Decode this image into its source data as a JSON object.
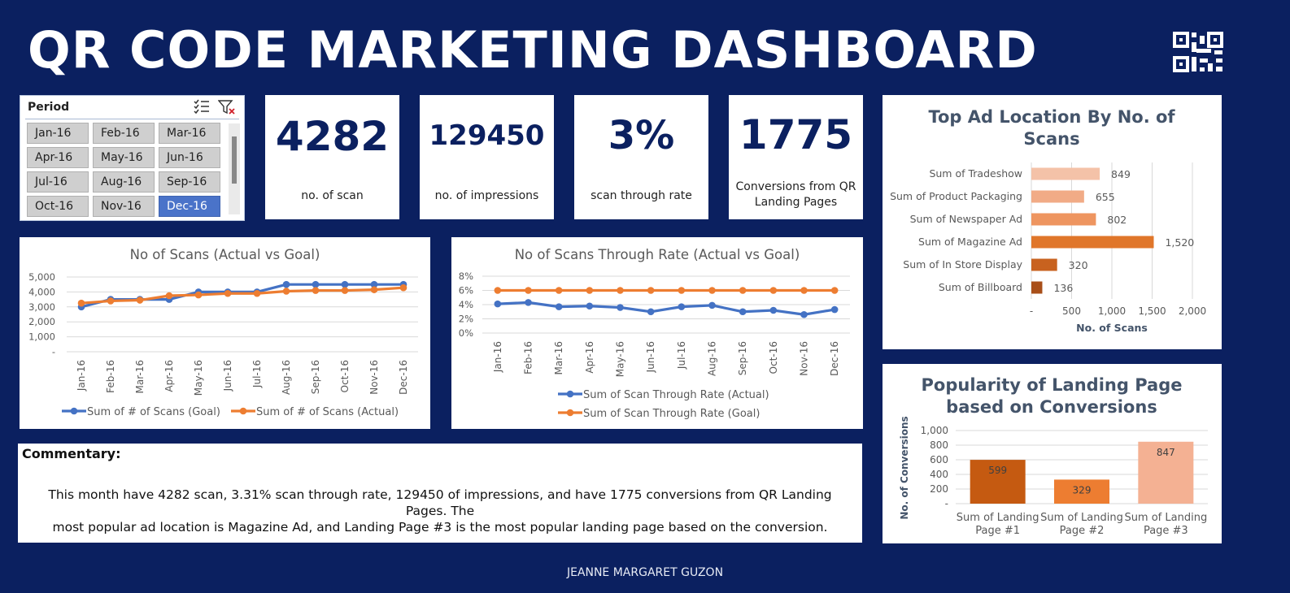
{
  "title": "QR CODE MARKETING DASHBOARD",
  "slicer": {
    "header": "Period",
    "items": [
      {
        "label": "Jan-16",
        "selected": false
      },
      {
        "label": "Feb-16",
        "selected": false
      },
      {
        "label": "Mar-16",
        "selected": false
      },
      {
        "label": "Apr-16",
        "selected": false
      },
      {
        "label": "May-16",
        "selected": false
      },
      {
        "label": "Jun-16",
        "selected": false
      },
      {
        "label": "Jul-16",
        "selected": false
      },
      {
        "label": "Aug-16",
        "selected": false
      },
      {
        "label": "Sep-16",
        "selected": false
      },
      {
        "label": "Oct-16",
        "selected": false
      },
      {
        "label": "Nov-16",
        "selected": false
      },
      {
        "label": "Dec-16",
        "selected": true
      }
    ]
  },
  "kpis": {
    "scans": {
      "value": "4282",
      "label": "no. of scan"
    },
    "impressions": {
      "value": "129450",
      "label": "no. of impressions"
    },
    "rate": {
      "value": "3%",
      "label": "scan through rate"
    },
    "conversions": {
      "value": "1775",
      "label1": "Conversions from QR",
      "label2": "Landing Pages"
    }
  },
  "commentary": {
    "heading": "Commentary:",
    "line1": "This month have 4282 scan, 3.31% scan through rate, 129450 of impressions, and have 1775 conversions from QR Landing Pages. The",
    "line2": "most popular ad location is Magazine Ad, and Landing Page #3 is the most popular landing page based on the conversion."
  },
  "footer": "JEANNE MARGARET GUZON",
  "colors": {
    "navy": "#0b2060",
    "blue": "#4472c4",
    "orange": "#ed7d31",
    "grid": "#d9d9d9",
    "text": "#595959"
  },
  "chart_data": [
    {
      "type": "line",
      "title": "No of Scans (Actual vs Goal)",
      "categories": [
        "Jan-16",
        "Feb-16",
        "Mar-16",
        "Apr-16",
        "May-16",
        "Jun-16",
        "Jul-16",
        "Aug-16",
        "Sep-16",
        "Oct-16",
        "Nov-16",
        "Dec-16"
      ],
      "series": [
        {
          "name": "Sum of # of Scans (Goal)",
          "color": "#4472c4",
          "values": [
            3000,
            3500,
            3500,
            3500,
            4000,
            4000,
            4000,
            4500,
            4500,
            4500,
            4500,
            4500
          ]
        },
        {
          "name": "Sum of # of Scans (Actual)",
          "color": "#ed7d31",
          "values": [
            3250,
            3400,
            3450,
            3750,
            3800,
            3900,
            3900,
            4050,
            4100,
            4100,
            4150,
            4282
          ]
        }
      ],
      "yticks": [
        "-",
        "1,000",
        "2,000",
        "3,000",
        "4,000",
        "5,000"
      ],
      "ylim": [
        0,
        5000
      ],
      "legend": "bottom"
    },
    {
      "type": "line",
      "title": "No of Scans Through Rate (Actual vs Goal)",
      "categories": [
        "Jan-16",
        "Feb-16",
        "Mar-16",
        "Apr-16",
        "May-16",
        "Jun-16",
        "Jul-16",
        "Aug-16",
        "Sep-16",
        "Oct-16",
        "Nov-16",
        "Dec-16"
      ],
      "series": [
        {
          "name": "Sum of Scan Through Rate (Actual)",
          "color": "#4472c4",
          "values": [
            4.1,
            4.3,
            3.7,
            3.8,
            3.6,
            3.0,
            3.7,
            3.9,
            3.0,
            3.2,
            2.6,
            3.31
          ]
        },
        {
          "name": "Sum of Scan Through Rate (Goal)",
          "color": "#ed7d31",
          "values": [
            6,
            6,
            6,
            6,
            6,
            6,
            6,
            6,
            6,
            6,
            6,
            6
          ]
        }
      ],
      "yticks": [
        "0%",
        "2%",
        "4%",
        "6%",
        "8%"
      ],
      "ylim": [
        0,
        8
      ],
      "legend": "bottom"
    },
    {
      "type": "bar",
      "orientation": "horizontal",
      "title": "Top Ad Location By No. of Scans",
      "title1": "Top Ad Location By No. of",
      "title2": "Scans",
      "categories": [
        "Sum of Tradeshow",
        "Sum of Product Packaging",
        "Sum of Newspaper Ad",
        "Sum of Magazine Ad",
        "Sum of In Store Display",
        "Sum of Billboard"
      ],
      "values": [
        849,
        655,
        802,
        1520,
        320,
        136
      ],
      "labels": [
        "849",
        "655",
        "802",
        "1,520",
        "320",
        "136"
      ],
      "colors": [
        "#f4c2a8",
        "#f1ab86",
        "#ee9560",
        "#e0762a",
        "#c8621f",
        "#a84f19"
      ],
      "xticks": [
        "-",
        "500",
        "1,000",
        "1,500",
        "2,000"
      ],
      "xlim": [
        0,
        2000
      ],
      "xlabel": "No. of Scans",
      "legend": "none"
    },
    {
      "type": "bar",
      "title": "Popularity of Landing Page based on Conversions",
      "title1": "Popularity of Landing Page",
      "title2": "based on Conversions",
      "categories": [
        [
          "Sum of Landing",
          "Page #1"
        ],
        [
          "Sum of Landing",
          "Page #2"
        ],
        [
          "Sum of Landing",
          "Page #3"
        ]
      ],
      "values": [
        599,
        329,
        847
      ],
      "labels": [
        "599",
        "329",
        "847"
      ],
      "colors": [
        "#c55a11",
        "#ed7d31",
        "#f4b193"
      ],
      "yticks": [
        "-",
        "200",
        "400",
        "600",
        "800",
        "1,000"
      ],
      "ylim": [
        0,
        1000
      ],
      "ylabel": "No. of Conversions",
      "legend": "none"
    }
  ]
}
